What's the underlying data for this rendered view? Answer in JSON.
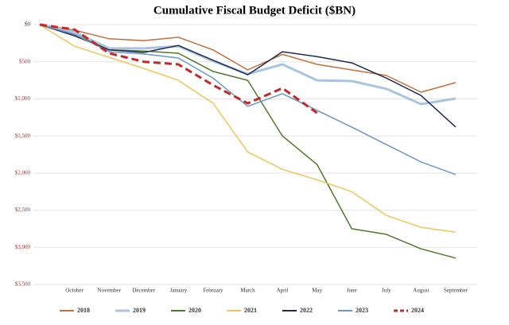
{
  "chart_data": {
    "type": "line",
    "title": "Cumulative Fiscal Budget Deficit ($BN)",
    "categories": [
      null,
      "October",
      "November",
      "December",
      "January",
      "February",
      "March",
      "April",
      "May",
      "June",
      "July",
      "August",
      "September"
    ],
    "ylim": [
      -3500,
      0
    ],
    "yticks": [
      {
        "value": -3500,
        "label": "$3,500"
      },
      {
        "value": -3000,
        "label": "$3,000"
      },
      {
        "value": -2500,
        "label": "$2,500"
      },
      {
        "value": -2000,
        "label": "$2,000"
      },
      {
        "value": -1500,
        "label": "$1,500"
      },
      {
        "value": -1000,
        "label": "$1,000"
      },
      {
        "value": -500,
        "label": "$500"
      },
      {
        "value": 0,
        "label": "$0"
      }
    ],
    "grid": true,
    "legend": "bottom",
    "series": [
      {
        "name": "2018",
        "color": "#c0703a",
        "values": [
          0,
          -75,
          -190,
          -215,
          -170,
          -340,
          -610,
          -400,
          -535,
          -610,
          -685,
          -910,
          -780
        ]
      },
      {
        "name": "2019",
        "color": "#a9c4e0",
        "width": 3,
        "values": [
          0,
          -100,
          -320,
          -320,
          -290,
          -490,
          -665,
          -535,
          -750,
          -760,
          -865,
          -1070,
          -995
        ]
      },
      {
        "name": "2020",
        "color": "#4e7a2a",
        "values": [
          0,
          -130,
          -340,
          -355,
          -385,
          -630,
          -750,
          -1500,
          -1885,
          -2750,
          -2825,
          -3020,
          -3145
        ]
      },
      {
        "name": "2021",
        "color": "#efc45a",
        "values": [
          0,
          -290,
          -440,
          -590,
          -750,
          -1060,
          -1715,
          -1950,
          -2090,
          -2250,
          -2570,
          -2730,
          -2795
        ]
      },
      {
        "name": "2022",
        "color": "#1f2a4e",
        "values": [
          0,
          -150,
          -340,
          -375,
          -280,
          -480,
          -675,
          -365,
          -430,
          -515,
          -720,
          -955,
          -1380
        ]
      },
      {
        "name": "2023",
        "color": "#6a96c8",
        "values": [
          0,
          -130,
          -365,
          -395,
          -450,
          -720,
          -1100,
          -930,
          -1155,
          -1380,
          -1615,
          -1850,
          -2020
        ]
      },
      {
        "name": "2024",
        "color": "#c0282a",
        "width": 3,
        "dashed": true,
        "values": [
          0,
          -65,
          -385,
          -500,
          -535,
          -815,
          -1060,
          -855,
          -1190,
          null,
          null,
          null,
          null
        ]
      }
    ]
  }
}
